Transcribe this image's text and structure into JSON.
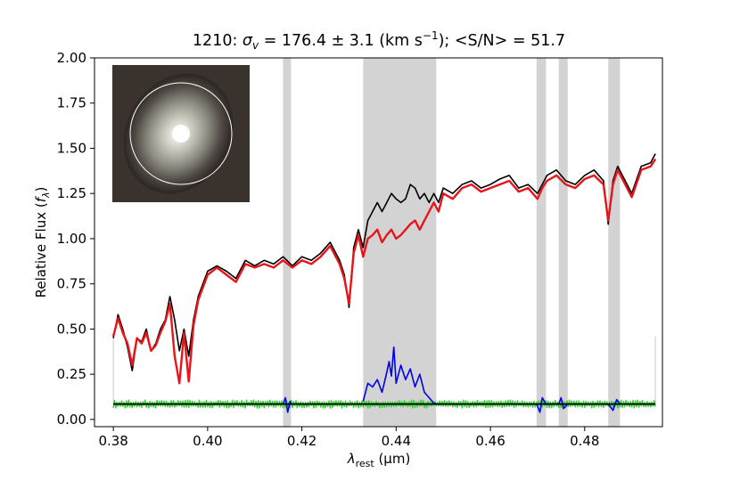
{
  "chart_data": {
    "type": "line",
    "title": "1210: σ_v = 176.4 ± 3.1 (km s⁻¹); <S/N> = 51.7",
    "title_parts": {
      "prefix": "1210: ",
      "sigma": "σ",
      "sigma_sub": "v",
      "middle": " = 176.4 ± 3.1 (km s",
      "exp": "−1",
      "suffix": "); <S/N> = 51.7"
    },
    "xlabel": "λrest (μm)",
    "xlabel_parts": {
      "lambda": "λ",
      "sub": "rest",
      "unit": " (μm)"
    },
    "ylabel": "Relative Flux (fλ)",
    "ylabel_parts": {
      "main": "Relative Flux (",
      "f": "f",
      "sub": "λ",
      "close": ")"
    },
    "xlim": [
      0.376,
      0.4965
    ],
    "ylim": [
      -0.04,
      2.0
    ],
    "x_ticks": [
      0.38,
      0.4,
      0.42,
      0.44,
      0.46,
      0.48
    ],
    "x_tick_labels": [
      "0.38",
      "0.40",
      "0.42",
      "0.44",
      "0.46",
      "0.48"
    ],
    "y_ticks": [
      0.0,
      0.25,
      0.5,
      0.75,
      1.0,
      1.25,
      1.5,
      1.75,
      2.0
    ],
    "y_tick_labels": [
      "0.00",
      "0.25",
      "0.50",
      "0.75",
      "1.00",
      "1.25",
      "1.50",
      "1.75",
      "2.00"
    ],
    "grid": false,
    "masked_regions": [
      [
        0.416,
        0.4177
      ],
      [
        0.433,
        0.4485
      ],
      [
        0.4698,
        0.4718
      ],
      [
        0.4745,
        0.4764
      ],
      [
        0.485,
        0.4875
      ]
    ],
    "edge_line_x": [
      0.38,
      0.495
    ],
    "series": [
      {
        "color": "#000000",
        "x": [
          0.38,
          0.381,
          0.382,
          0.383,
          0.384,
          0.385,
          0.386,
          0.387,
          0.388,
          0.389,
          0.39,
          0.391,
          0.392,
          0.393,
          0.394,
          0.395,
          0.396,
          0.397,
          0.398,
          0.4,
          0.402,
          0.404,
          0.406,
          0.408,
          0.41,
          0.412,
          0.414,
          0.416,
          0.418,
          0.42,
          0.422,
          0.424,
          0.426,
          0.428,
          0.429,
          0.43,
          0.431,
          0.432,
          0.433,
          0.434,
          0.435,
          0.436,
          0.437,
          0.438,
          0.439,
          0.44,
          0.441,
          0.442,
          0.443,
          0.444,
          0.445,
          0.446,
          0.447,
          0.448,
          0.449,
          0.45,
          0.452,
          0.454,
          0.456,
          0.458,
          0.46,
          0.462,
          0.464,
          0.466,
          0.468,
          0.47,
          0.471,
          0.472,
          0.474,
          0.476,
          0.478,
          0.48,
          0.482,
          0.484,
          0.485,
          0.486,
          0.487,
          0.488,
          0.49,
          0.492,
          0.494,
          0.495
        ],
        "y": [
          0.45,
          0.58,
          0.5,
          0.4,
          0.27,
          0.45,
          0.43,
          0.5,
          0.38,
          0.42,
          0.5,
          0.55,
          0.68,
          0.55,
          0.38,
          0.5,
          0.35,
          0.55,
          0.68,
          0.82,
          0.85,
          0.82,
          0.78,
          0.88,
          0.85,
          0.88,
          0.86,
          0.9,
          0.85,
          0.9,
          0.88,
          0.92,
          0.98,
          0.88,
          0.8,
          0.62,
          0.95,
          1.05,
          0.95,
          1.1,
          1.15,
          1.2,
          1.15,
          1.2,
          1.25,
          1.22,
          1.2,
          1.22,
          1.3,
          1.28,
          1.22,
          1.25,
          1.2,
          1.25,
          1.2,
          1.28,
          1.25,
          1.3,
          1.32,
          1.28,
          1.3,
          1.33,
          1.35,
          1.28,
          1.3,
          1.25,
          1.3,
          1.35,
          1.38,
          1.32,
          1.3,
          1.35,
          1.38,
          1.32,
          1.08,
          1.32,
          1.4,
          1.35,
          1.25,
          1.4,
          1.42,
          1.47
        ]
      },
      {
        "color": "#e8141a",
        "x": [
          0.38,
          0.381,
          0.382,
          0.383,
          0.384,
          0.385,
          0.386,
          0.387,
          0.388,
          0.389,
          0.39,
          0.391,
          0.392,
          0.393,
          0.394,
          0.395,
          0.396,
          0.397,
          0.398,
          0.4,
          0.402,
          0.404,
          0.406,
          0.408,
          0.41,
          0.412,
          0.414,
          0.416,
          0.418,
          0.42,
          0.422,
          0.424,
          0.426,
          0.428,
          0.429,
          0.43,
          0.431,
          0.432,
          0.433,
          0.434,
          0.435,
          0.436,
          0.437,
          0.438,
          0.439,
          0.44,
          0.441,
          0.442,
          0.443,
          0.444,
          0.445,
          0.446,
          0.447,
          0.448,
          0.449,
          0.45,
          0.452,
          0.454,
          0.456,
          0.458,
          0.46,
          0.462,
          0.464,
          0.466,
          0.468,
          0.47,
          0.471,
          0.472,
          0.474,
          0.476,
          0.478,
          0.48,
          0.482,
          0.484,
          0.485,
          0.486,
          0.487,
          0.488,
          0.49,
          0.492,
          0.494,
          0.495
        ],
        "y": [
          0.46,
          0.56,
          0.48,
          0.42,
          0.3,
          0.45,
          0.42,
          0.48,
          0.38,
          0.41,
          0.48,
          0.54,
          0.64,
          0.35,
          0.2,
          0.48,
          0.21,
          0.52,
          0.66,
          0.8,
          0.84,
          0.8,
          0.76,
          0.86,
          0.84,
          0.86,
          0.84,
          0.88,
          0.84,
          0.88,
          0.86,
          0.9,
          0.96,
          0.86,
          0.78,
          0.64,
          0.92,
          1.02,
          0.9,
          1.0,
          1.02,
          1.05,
          0.98,
          1.02,
          1.05,
          1.0,
          1.02,
          1.05,
          1.08,
          1.1,
          1.05,
          1.1,
          1.15,
          1.2,
          1.15,
          1.25,
          1.22,
          1.28,
          1.3,
          1.26,
          1.28,
          1.3,
          1.32,
          1.26,
          1.28,
          1.22,
          1.28,
          1.32,
          1.35,
          1.3,
          1.28,
          1.33,
          1.35,
          1.3,
          1.1,
          1.3,
          1.38,
          1.33,
          1.23,
          1.38,
          1.4,
          1.44
        ]
      },
      {
        "color": "#37c837",
        "x_start": 0.38,
        "x_end": 0.495,
        "level": 0.085,
        "amplitude": 0.022
      },
      {
        "color": "#0000ee",
        "x": [
          0.416,
          0.4165,
          0.417,
          0.4175,
          0.4177,
          0.433,
          0.434,
          0.435,
          0.436,
          0.437,
          0.438,
          0.4385,
          0.439,
          0.4395,
          0.44,
          0.441,
          0.442,
          0.443,
          0.444,
          0.445,
          0.446,
          0.447,
          0.448,
          0.4485,
          0.4698,
          0.4705,
          0.471,
          0.4718,
          0.4745,
          0.475,
          0.4755,
          0.4764,
          0.485,
          0.486,
          0.4868,
          0.4875
        ],
        "y": [
          0.085,
          0.12,
          0.04,
          0.1,
          0.085,
          0.1,
          0.2,
          0.18,
          0.22,
          0.15,
          0.26,
          0.32,
          0.24,
          0.4,
          0.2,
          0.3,
          0.22,
          0.28,
          0.18,
          0.25,
          0.15,
          0.12,
          0.09,
          0.085,
          0.085,
          0.04,
          0.12,
          0.085,
          0.085,
          0.12,
          0.06,
          0.085,
          0.085,
          0.05,
          0.11,
          0.085
        ]
      },
      {
        "color": "#000000",
        "x": [
          0.38,
          0.495
        ],
        "y": [
          0.085,
          0.085
        ]
      }
    ],
    "inset_image": {
      "description": "galaxy cutout thumbnail",
      "circle_color": "#ffffff"
    }
  }
}
